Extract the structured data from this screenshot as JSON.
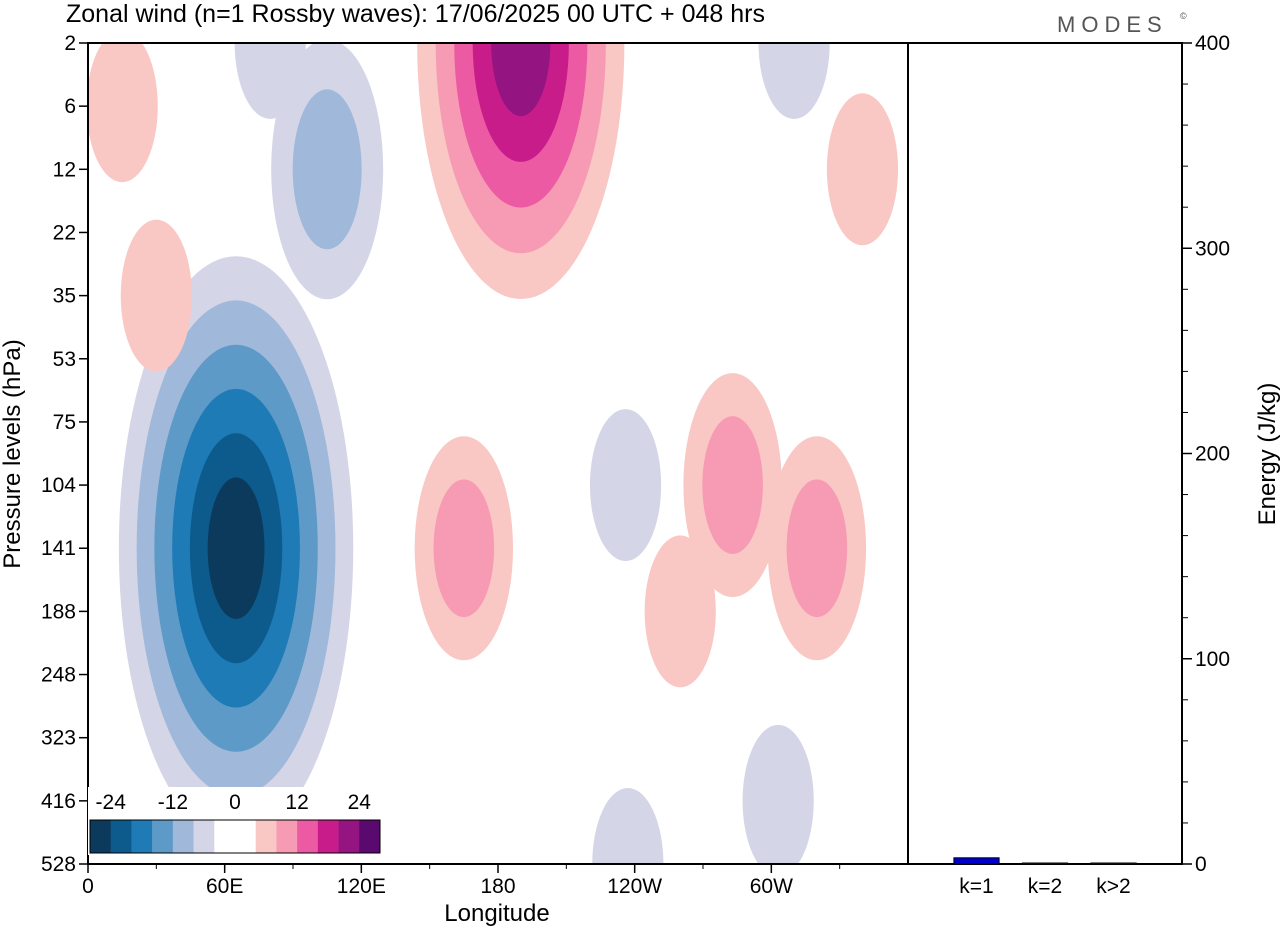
{
  "title": "Zonal wind (n=1 Rossby waves):  17/06/2025  00 UTC  + 048 hrs",
  "logo": {
    "text": "MODES",
    "mark": "©"
  },
  "colors": {
    "neg": [
      "#0b3a5c",
      "#0d5a8c",
      "#1f7bb6",
      "#5e9ac7",
      "#a0b8d9",
      "#d4d6e8"
    ],
    "zero": "#ffffff",
    "pos": [
      "#f9c8c4",
      "#f79bb4",
      "#ec5aa3",
      "#c81c8a",
      "#941481",
      "#5a0a6e"
    ],
    "bar": "#0000cc"
  },
  "chart_data": [
    {
      "type": "heatmap",
      "title": "Zonal wind (n=1 Rossby waves):  17/06/2025  00 UTC  + 048 hrs",
      "xlabel": "Longitude",
      "ylabel": "Pressure levels (hPa)",
      "x_ticks": [
        "0",
        "60E",
        "120E",
        "180",
        "120W",
        "60W"
      ],
      "x_range_deg": [
        0,
        360
      ],
      "y_ticks": [
        "2",
        "6",
        "12",
        "22",
        "35",
        "53",
        "75",
        "104",
        "141",
        "188",
        "248",
        "323",
        "416",
        "528"
      ],
      "colorbar": {
        "labels": [
          "-24",
          "-12",
          "0",
          "12",
          "24"
        ],
        "levels": [
          -30,
          -24,
          -18,
          -12,
          -6,
          -3,
          3,
          6,
          12,
          18,
          24,
          30
        ]
      },
      "features": [
        {
          "sign": "negative",
          "lon": 65,
          "level": 141,
          "peak": -28
        },
        {
          "sign": "negative",
          "lon": 105,
          "level": 12,
          "peak": -10
        },
        {
          "sign": "negative",
          "lon": 80,
          "level": 2,
          "peak": -4
        },
        {
          "sign": "negative",
          "lon": 237,
          "level": 528,
          "peak": -4
        },
        {
          "sign": "negative",
          "lon": 303,
          "level": 416,
          "peak": -4
        },
        {
          "sign": "negative",
          "lon": 236,
          "level": 104,
          "peak": -4
        },
        {
          "sign": "negative",
          "lon": 310,
          "level": 2,
          "peak": -4
        },
        {
          "sign": "positive",
          "lon": 190,
          "level": 2,
          "peak": 24
        },
        {
          "sign": "positive",
          "lon": 165,
          "level": 141,
          "peak": 8
        },
        {
          "sign": "positive",
          "lon": 283,
          "level": 104,
          "peak": 8
        },
        {
          "sign": "positive",
          "lon": 320,
          "level": 141,
          "peak": 8
        },
        {
          "sign": "positive",
          "lon": 260,
          "level": 188,
          "peak": 4
        },
        {
          "sign": "positive",
          "lon": 15,
          "level": 6,
          "peak": 4
        },
        {
          "sign": "positive",
          "lon": 30,
          "level": 35,
          "peak": 4
        },
        {
          "sign": "positive",
          "lon": 340,
          "level": 12,
          "peak": 4
        }
      ]
    },
    {
      "type": "bar",
      "categories": [
        "k=1",
        "k=2",
        "k>2"
      ],
      "values": [
        3,
        0.5,
        0.5
      ],
      "ylabel": "Energy (J/kg)",
      "ylim": [
        0,
        400
      ],
      "y_ticks": [
        "0",
        "100",
        "200",
        "300",
        "400"
      ]
    }
  ]
}
